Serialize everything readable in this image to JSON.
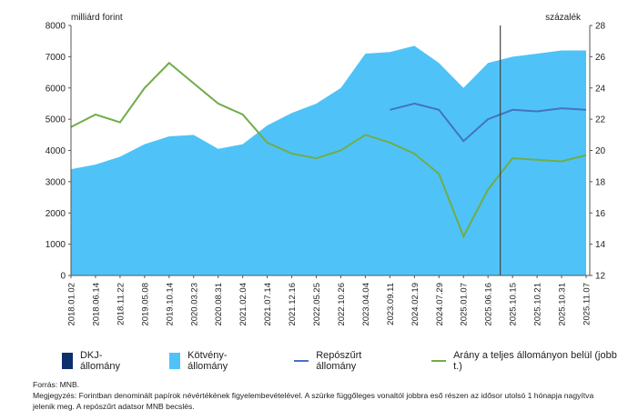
{
  "chart_data": {
    "type": "area+line",
    "left_axis_label": "milliárd forint",
    "right_axis_label": "százalék",
    "ylim_left": [
      0,
      8000
    ],
    "ylim_right": [
      12,
      28
    ],
    "left_ticks": [
      0,
      1000,
      2000,
      3000,
      4000,
      5000,
      6000,
      7000,
      8000
    ],
    "right_ticks": [
      12,
      14,
      16,
      18,
      20,
      22,
      24,
      26,
      28
    ],
    "categories": [
      "2018.01.02",
      "2018.06.14",
      "2018.11.22",
      "2019.05.08",
      "2019.10.14",
      "2020.03.23",
      "2020.08.31",
      "2021.02.04",
      "2021.07.14",
      "2021.12.16",
      "2022.05.25",
      "2022.10.26",
      "2023.04.04",
      "2023.09.11",
      "2024.02.19",
      "2024.07.29",
      "2025.01.07",
      "2025.06.16",
      "2025.10.15",
      "2025.10.21",
      "2025.10.31",
      "2025.11.07"
    ],
    "zoom_marker_after": "2025.06.16",
    "grid": false,
    "legend_placement": "bottom",
    "series": [
      {
        "name": "DKJ-állomány",
        "kind": "area",
        "axis": "left",
        "color": "#0d2f6b",
        "values": [
          150,
          250,
          220,
          0,
          0,
          0,
          0,
          0,
          0,
          0,
          0,
          0,
          60,
          60,
          60,
          0,
          0,
          0,
          0,
          0,
          0,
          0
        ]
      },
      {
        "name": "Kötvény-állomány",
        "kind": "area",
        "axis": "left",
        "color": "#4fc3f7",
        "values": [
          3400,
          3550,
          3800,
          4200,
          4450,
          4500,
          4050,
          4200,
          4800,
          5200,
          5500,
          6000,
          7100,
          7150,
          7350,
          6800,
          6000,
          6800,
          7000,
          7100,
          7200,
          7200
        ]
      },
      {
        "name": "Repószűrt állomány",
        "kind": "line",
        "axis": "left",
        "color": "#4472c4",
        "values": [
          null,
          null,
          null,
          null,
          null,
          null,
          null,
          null,
          null,
          null,
          null,
          null,
          null,
          5300,
          5500,
          5300,
          4300,
          5000,
          5300,
          5250,
          5350,
          5300
        ]
      },
      {
        "name": "Arány a teljes állományon belül (jobb t.)",
        "kind": "line",
        "axis": "right",
        "color": "#70ad47",
        "values": [
          21.5,
          22.3,
          21.8,
          24,
          25.6,
          24.3,
          23,
          22.3,
          20.5,
          19.8,
          19.5,
          20,
          21,
          20.5,
          19.8,
          18.5,
          14.5,
          17.5,
          19.5,
          19.4,
          19.3,
          19.7
        ]
      }
    ]
  },
  "notes": {
    "source": "Forrás: MNB.",
    "remark": "Megjegyzés: Forintban denominált papírok névértékének figyelembevételével. A szürke függőleges vonaltól jobbra eső részen az idősor utolsó 1 hónapja nagyítva jelenik meg. A repószűrt adatsor MNB becslés."
  }
}
